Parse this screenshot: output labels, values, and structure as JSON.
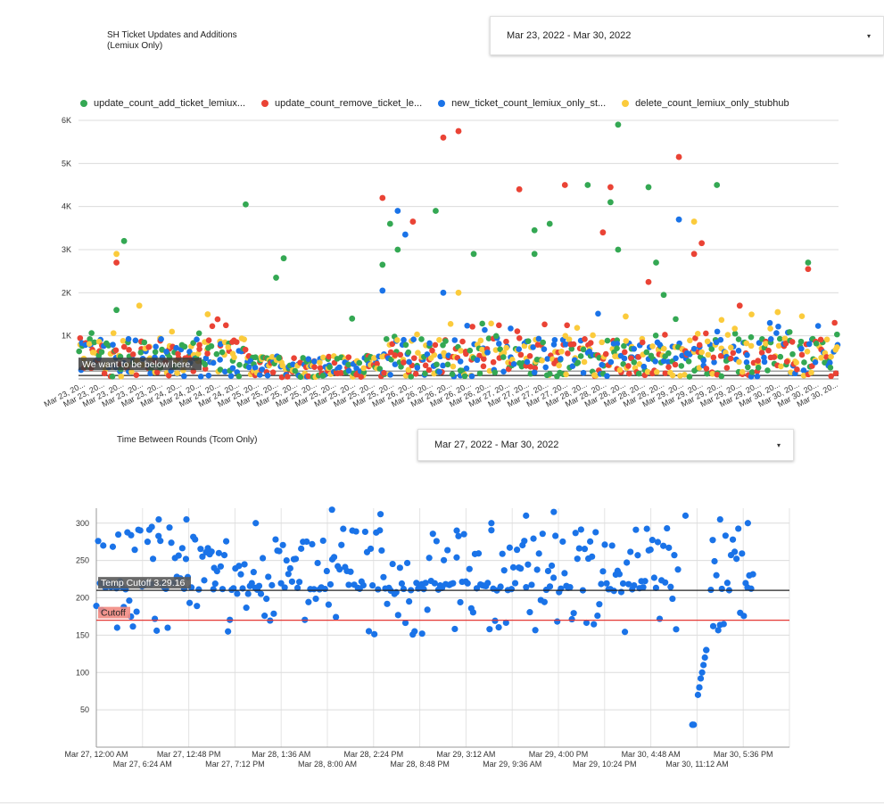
{
  "chart1": {
    "title_line1": "SH Ticket Updates and Additions",
    "title_line2": "(Lemiux Only)",
    "date_range": "Mar 23, 2022 - Mar 30, 2022",
    "caret": "▾"
  },
  "chart2": {
    "title": "Time Between Rounds (Tcom Only)",
    "date_range": "Mar 27, 2022 - Mar 30, 2022",
    "caret": "▾"
  },
  "colors": {
    "green": "#34a853",
    "red": "#ea4335",
    "blue": "#1a73e8",
    "yellow": "#fbcb3c",
    "cutoff_line": "#e53935",
    "temp_line": "#222222"
  },
  "chart_data": [
    {
      "type": "scatter",
      "title": "SH Ticket Updates and Additions (Lemiux Only)",
      "xlabel": "",
      "ylabel": "",
      "ylim": [
        0,
        6000
      ],
      "yticks": [
        "1K",
        "2K",
        "3K",
        "4K",
        "5K",
        "6K"
      ],
      "x_range": [
        "Mar 23, 2022",
        "Mar 30, 2022"
      ],
      "x_tick_label": "Mar 23, 20...",
      "x_tick_labels": [
        "Mar 23, 20...",
        "Mar 23, 20...",
        "Mar 23, 20...",
        "Mar 23, 20...",
        "Mar 23, 20...",
        "Mar 24, 20...",
        "Mar 24, 20...",
        "Mar 24, 20...",
        "Mar 24, 20...",
        "Mar 25, 20...",
        "Mar 25, 20...",
        "Mar 25, 20...",
        "Mar 25, 20...",
        "Mar 25, 20...",
        "Mar 25, 20...",
        "Mar 25, 20...",
        "Mar 25, 20...",
        "Mar 26, 20...",
        "Mar 26, 20...",
        "Mar 26, 20...",
        "Mar 26, 20...",
        "Mar 26, 20...",
        "Mar 27, 20...",
        "Mar 27, 20...",
        "Mar 27, 20...",
        "Mar 27, 20...",
        "Mar 28, 20...",
        "Mar 28, 20...",
        "Mar 28, 20...",
        "Mar 28, 20...",
        "Mar 28, 20...",
        "Mar 29, 20...",
        "Mar 29, 20...",
        "Mar 29, 20...",
        "Mar 29, 20...",
        "Mar 29, 20...",
        "Mar 30, 20...",
        "Mar 30, 20...",
        "Mar 30, 20...",
        "Mar 30, 20..."
      ],
      "legend_position": "top",
      "grid": true,
      "reference_line": {
        "label": "We want to be below here.",
        "value": 80
      },
      "series": [
        {
          "name": "update_count_add_ticket_lemiux...",
          "color": "green",
          "notable_points": [
            [
              0.05,
              1600
            ],
            [
              0.06,
              3200
            ],
            [
              0.22,
              4050
            ],
            [
              0.26,
              2350
            ],
            [
              0.27,
              2800
            ],
            [
              0.36,
              1400
            ],
            [
              0.4,
              2650
            ],
            [
              0.41,
              3600
            ],
            [
              0.42,
              3000
            ],
            [
              0.47,
              3900
            ],
            [
              0.52,
              2900
            ],
            [
              0.6,
              2900
            ],
            [
              0.6,
              3450
            ],
            [
              0.62,
              3600
            ],
            [
              0.67,
              4500
            ],
            [
              0.7,
              4100
            ],
            [
              0.71,
              3000
            ],
            [
              0.75,
              4450
            ],
            [
              0.76,
              2700
            ],
            [
              0.77,
              1950
            ],
            [
              0.84,
              4500
            ],
            [
              0.96,
              2700
            ]
          ],
          "peak": 5900
        },
        {
          "name": "update_count_remove_ticket_le...",
          "color": "red",
          "notable_points": [
            [
              0.05,
              2700
            ],
            [
              0.4,
              4200
            ],
            [
              0.44,
              3650
            ],
            [
              0.48,
              5600
            ],
            [
              0.5,
              5750
            ],
            [
              0.58,
              4400
            ],
            [
              0.64,
              4500
            ],
            [
              0.69,
              3400
            ],
            [
              0.7,
              4450
            ],
            [
              0.75,
              2250
            ],
            [
              0.79,
              5150
            ],
            [
              0.81,
              2900
            ],
            [
              0.82,
              3150
            ],
            [
              0.87,
              1700
            ],
            [
              0.96,
              2550
            ]
          ],
          "peak": 5750
        },
        {
          "name": "new_ticket_count_lemiux_only_st...",
          "color": "blue",
          "notable_points": [
            [
              0.4,
              2050
            ],
            [
              0.42,
              3900
            ],
            [
              0.43,
              3350
            ],
            [
              0.48,
              2000
            ],
            [
              0.79,
              3700
            ]
          ],
          "peak": 3950
        },
        {
          "name": "delete_count_lemiux_only_stubhub",
          "color": "yellow",
          "notable_points": [
            [
              0.05,
              2900
            ],
            [
              0.08,
              1700
            ],
            [
              0.17,
              1500
            ],
            [
              0.5,
              2000
            ],
            [
              0.72,
              1450
            ],
            [
              0.81,
              3650
            ],
            [
              0.92,
              1550
            ]
          ],
          "peak": 3650
        }
      ]
    },
    {
      "type": "scatter",
      "title": "Time Between Rounds (Tcom Only)",
      "xlabel": "",
      "ylabel": "",
      "ylim": [
        0,
        320
      ],
      "yticks": [
        "50",
        "100",
        "150",
        "200",
        "250",
        "300"
      ],
      "x_range": [
        "Mar 27, 12:00 AM",
        "Mar 30, 7:30 PM"
      ],
      "x_tick_labels_row1": [
        "Mar 27, 12:00 AM",
        "Mar 27, 12:48 PM",
        "Mar 28, 1:36 AM",
        "Mar 28, 2:24 PM",
        "Mar 29, 3:12 AM",
        "Mar 29, 4:00 PM",
        "Mar 30, 4:48 AM",
        "Mar 30, 5:36 PM"
      ],
      "x_tick_labels_row2": [
        "Mar 27, 6:24 AM",
        "Mar 27, 7:12 PM",
        "Mar 28, 8:00 AM",
        "Mar 28, 8:48 PM",
        "Mar 29, 9:36 AM",
        "Mar 29, 10:24 PM",
        "Mar 30, 11:12 AM"
      ],
      "grid": true,
      "series": [
        {
          "name": "Time Between Rounds",
          "color": "blue",
          "notable_points": [
            [
              0.01,
              270
            ],
            [
              0.03,
              160
            ],
            [
              0.05,
              175
            ],
            [
              0.08,
              295
            ],
            [
              0.09,
              305
            ],
            [
              0.13,
              305
            ],
            [
              0.17,
              240
            ],
            [
              0.23,
              300
            ],
            [
              0.34,
              318
            ],
            [
              0.41,
              312
            ],
            [
              0.47,
              152
            ],
            [
              0.52,
              290
            ],
            [
              0.57,
              300
            ],
            [
              0.62,
              310
            ],
            [
              0.66,
              315
            ],
            [
              0.85,
              310
            ],
            [
              0.86,
              30
            ],
            [
              0.87,
              80
            ],
            [
              0.88,
              130
            ],
            [
              0.9,
              305
            ],
            [
              0.94,
              300
            ]
          ]
        }
      ],
      "reference_lines": [
        {
          "label": "Temp Cutoff 3.29.16",
          "value": 210,
          "color": "temp_line"
        },
        {
          "label": "Cutoff",
          "value": 170,
          "color": "cutoff_line"
        }
      ]
    }
  ]
}
